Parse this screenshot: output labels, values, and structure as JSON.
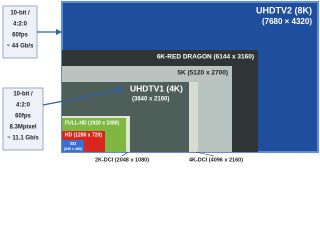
{
  "nodes": [
    {
      "label": "UHDTV2 (8K)",
      "resolution": "(7680 × 4320)"
    },
    {
      "label": "6K-RED DRAGON (6144 x 3160)"
    },
    {
      "label": "5K (5120 x 2700)"
    },
    {
      "label": "4K-DCI (4096 x 2160)"
    },
    {
      "label": "UHDTV1 (4K)",
      "resolution": "(3840 x 2160)"
    },
    {
      "label": "2K-DCI (2048 x 1080)"
    },
    {
      "label": "FULL-HD (1920 x 1080)"
    },
    {
      "label": "HD (1280 x 720)"
    },
    {
      "label": "SD",
      "resolution": "(640 x 480)"
    }
  ],
  "callouts": [
    {
      "lines": [
        "10-bit /",
        "4:2:0",
        "60fps",
        "~ 44 Gb/s"
      ]
    },
    {
      "lines": [
        "10-bit /",
        "4:2:0",
        "60fps",
        "8.3Mpixel",
        "~ 11.1 Gb/s"
      ]
    }
  ]
}
